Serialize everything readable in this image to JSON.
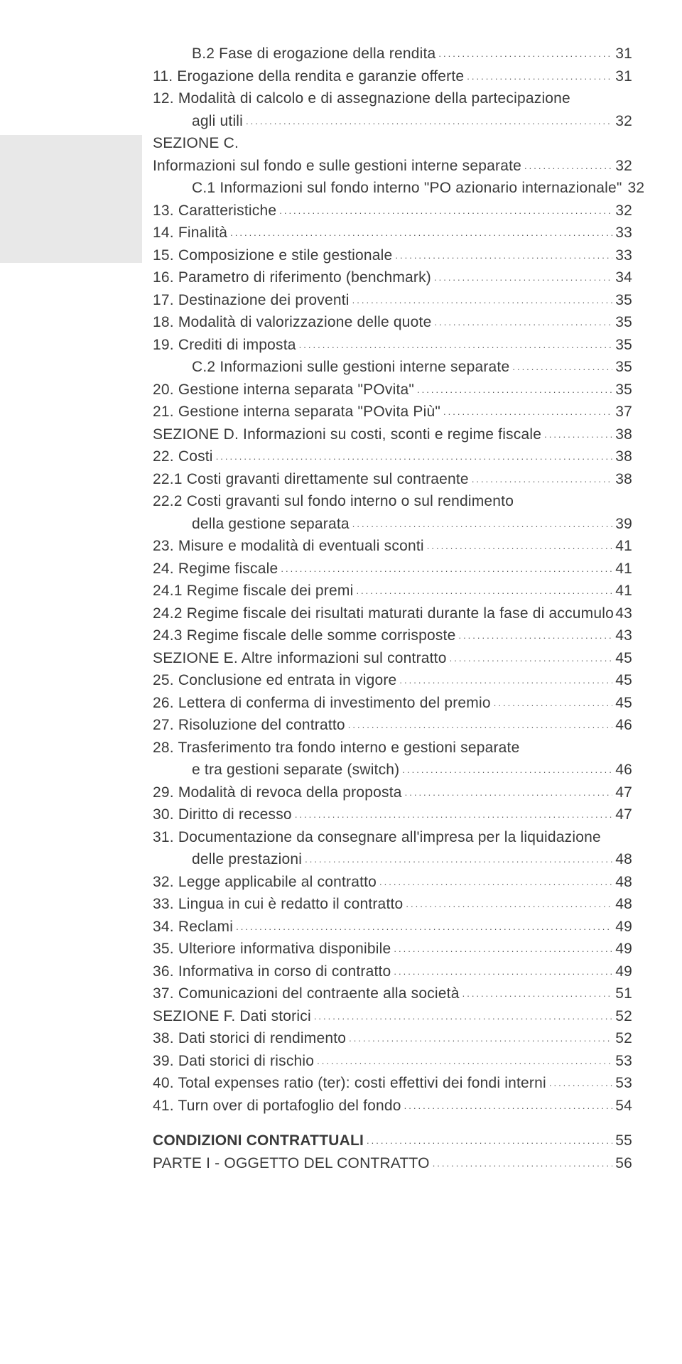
{
  "entries": [
    {
      "label": "B.2 Fase di erogazione della rendita",
      "page": "31",
      "indent": 1
    },
    {
      "label": "11. Erogazione della rendita e garanzie offerte",
      "page": "31"
    },
    {
      "label": "12. Modalità di calcolo e di assegnazione della partecipazione",
      "cont": true
    },
    {
      "label": "agli utili",
      "page": "32",
      "indent": 1
    },
    {
      "label": "SEZIONE C.",
      "cont": true
    },
    {
      "label": "Informazioni sul fondo e sulle gestioni interne separate",
      "page": "32"
    },
    {
      "label": "C.1 Informazioni sul fondo interno \"PO azionario internazionale\"",
      "page": "32",
      "indent": 1
    },
    {
      "label": "13. Caratteristiche",
      "page": "32"
    },
    {
      "label": "14. Finalità",
      "page": "33"
    },
    {
      "label": "15. Composizione e stile gestionale",
      "page": "33"
    },
    {
      "label": "16. Parametro di riferimento (benchmark)",
      "page": "34"
    },
    {
      "label": "17. Destinazione dei proventi",
      "page": "35"
    },
    {
      "label": "18. Modalità di valorizzazione delle quote",
      "page": "35"
    },
    {
      "label": "19. Crediti di imposta",
      "page": "35"
    },
    {
      "label": "C.2 Informazioni sulle gestioni interne separate",
      "page": "35",
      "indent": 1
    },
    {
      "label": "20. Gestione interna separata \"POvita\"",
      "page": "35"
    },
    {
      "label": "21. Gestione interna separata \"POvita Più\"",
      "page": "37"
    },
    {
      "label": "SEZIONE D. Informazioni su costi, sconti e regime fiscale",
      "page": "38"
    },
    {
      "label": "22. Costi",
      "page": "38"
    },
    {
      "label": "22.1 Costi gravanti direttamente sul contraente",
      "page": "38"
    },
    {
      "label": "22.2 Costi gravanti sul fondo interno o sul rendimento",
      "cont": true
    },
    {
      "label": "della gestione separata",
      "page": "39",
      "indent": 1
    },
    {
      "label": "23. Misure e modalità di eventuali sconti",
      "page": "41"
    },
    {
      "label": "24. Regime fiscale",
      "page": "41"
    },
    {
      "label": "24.1 Regime fiscale dei premi",
      "page": "41"
    },
    {
      "label": "24.2 Regime fiscale dei risultati maturati durante la fase di accumulo",
      "page": "43",
      "tight": true
    },
    {
      "label": "24.3 Regime fiscale delle somme corrisposte",
      "page": "43"
    },
    {
      "label": "SEZIONE E. Altre informazioni sul contratto",
      "page": "45"
    },
    {
      "label": "25. Conclusione ed entrata in vigore",
      "page": "45"
    },
    {
      "label": "26. Lettera di conferma di investimento del premio",
      "page": "45"
    },
    {
      "label": "27. Risoluzione del contratto",
      "page": "46"
    },
    {
      "label": "28. Trasferimento tra fondo interno e gestioni separate",
      "cont": true
    },
    {
      "label": "e tra gestioni separate (switch)",
      "page": "46",
      "indent": 1
    },
    {
      "label": "29. Modalità di revoca della proposta",
      "page": "47"
    },
    {
      "label": "30. Diritto di recesso",
      "page": "47"
    },
    {
      "label": "31. Documentazione da consegnare all'impresa per la liquidazione",
      "cont": true
    },
    {
      "label": "delle prestazioni",
      "page": "48",
      "indent": 1
    },
    {
      "label": "32. Legge applicabile al contratto",
      "page": "48"
    },
    {
      "label": "33. Lingua in cui è redatto il contratto",
      "page": "48"
    },
    {
      "label": "34. Reclami",
      "page": "49"
    },
    {
      "label": "35. Ulteriore informativa disponibile",
      "page": "49"
    },
    {
      "label": "36. Informativa in corso di contratto",
      "page": "49"
    },
    {
      "label": "37. Comunicazioni del contraente alla società",
      "page": "51"
    },
    {
      "label": "SEZIONE F. Dati storici",
      "page": "52"
    },
    {
      "label": "38. Dati storici di rendimento",
      "page": "52"
    },
    {
      "label": "39. Dati storici di rischio",
      "page": "53"
    },
    {
      "label": "40. Total expenses ratio (ter): costi effettivi dei fondi interni",
      "page": "53"
    },
    {
      "label": "41. Turn over di portafoglio del fondo",
      "page": "54"
    },
    {
      "spacer": true
    },
    {
      "label": "CONDIZIONI CONTRATTUALI",
      "page": "55",
      "bold": true
    },
    {
      "label": "PARTE I - OGGETTO DEL CONTRATTO",
      "page": "56"
    }
  ]
}
